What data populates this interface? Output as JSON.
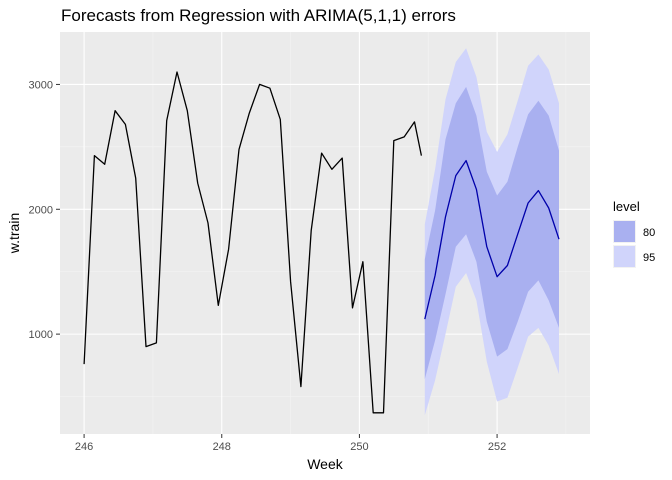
{
  "chart_data": {
    "type": "line",
    "title": "Forecasts from Regression with ARIMA(5,1,1) errors",
    "xlabel": "Week",
    "ylabel": "w.train",
    "xlim": [
      245.65,
      253.35
    ],
    "ylim": [
      200,
      3420
    ],
    "x_ticks": [
      {
        "value": 246,
        "label": "246"
      },
      {
        "value": 248,
        "label": "248"
      },
      {
        "value": 250,
        "label": "250"
      },
      {
        "value": 252,
        "label": "252"
      }
    ],
    "y_ticks": [
      {
        "value": 1000,
        "label": "1000"
      },
      {
        "value": 2000,
        "label": "2000"
      },
      {
        "value": 3000,
        "label": "3000"
      }
    ],
    "grid": true,
    "legend": {
      "title": "level",
      "position": "right",
      "entries": [
        {
          "label": "80",
          "color": "#a9b0f0"
        },
        {
          "label": "95",
          "color": "#d0d4fb"
        }
      ]
    },
    "colors": {
      "panel": "#ebebeb",
      "grid_major": "#ffffff",
      "history": "#000000",
      "forecast": "#0000aa",
      "band80": "#a9b0f0",
      "band95": "#d0d4fb"
    },
    "history": {
      "x": [
        246.0,
        246.15,
        246.3,
        246.45,
        246.6,
        246.75,
        246.9,
        247.05,
        247.2,
        247.35,
        247.5,
        247.65,
        247.8,
        247.95,
        248.1,
        248.25,
        248.4,
        248.55,
        248.7,
        248.85,
        249.0,
        249.15,
        249.3,
        249.45,
        249.6,
        249.75,
        249.9,
        250.05,
        250.2,
        250.35,
        250.5,
        250.65,
        250.8,
        250.9
      ],
      "y": [
        760,
        2430,
        2360,
        2790,
        2680,
        2250,
        900,
        930,
        2710,
        3100,
        2790,
        2210,
        1890,
        1230,
        1680,
        2480,
        2770,
        3000,
        2970,
        2720,
        1420,
        580,
        1830,
        2450,
        2320,
        2410,
        1210,
        1580,
        370,
        370,
        2550,
        2580,
        2700,
        2430
      ]
    },
    "forecast": {
      "x": [
        250.95,
        251.1,
        251.25,
        251.4,
        251.55,
        251.7,
        251.85,
        252.0,
        252.15,
        252.3,
        252.45,
        252.6,
        252.75,
        252.9
      ],
      "y": [
        1120,
        1470,
        1940,
        2270,
        2390,
        2160,
        1700,
        1460,
        1550,
        1800,
        2050,
        2150,
        2010,
        1760
      ],
      "lo80": [
        640,
        950,
        1320,
        1700,
        1800,
        1580,
        1100,
        820,
        880,
        1100,
        1340,
        1430,
        1270,
        1050
      ],
      "hi80": [
        1600,
        1990,
        2560,
        2850,
        2980,
        2750,
        2300,
        2110,
        2220,
        2500,
        2760,
        2870,
        2750,
        2470
      ],
      "lo95": [
        350,
        630,
        1000,
        1380,
        1490,
        1270,
        780,
        460,
        490,
        730,
        980,
        1050,
        910,
        680
      ],
      "hi95": [
        1880,
        2320,
        2880,
        3180,
        3290,
        3060,
        2620,
        2460,
        2600,
        2870,
        3150,
        3240,
        3120,
        2850
      ]
    }
  }
}
